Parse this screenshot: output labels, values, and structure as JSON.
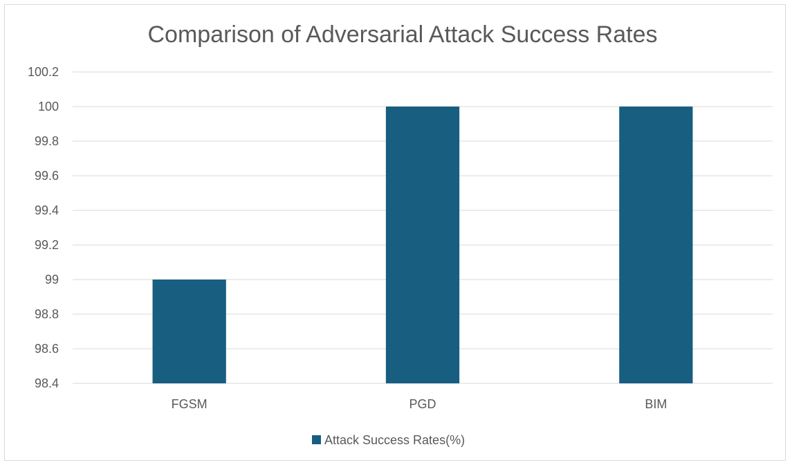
{
  "chart_data": {
    "type": "bar",
    "title": "Comparison of Adversarial Attack Success Rates",
    "xlabel": "",
    "ylabel": "",
    "categories": [
      "FGSM",
      "PGD",
      "BIM"
    ],
    "series": [
      {
        "name": "Attack Success Rates(%)",
        "values": [
          99,
          100,
          100
        ],
        "color": "#175e81"
      }
    ],
    "ylim": [
      98.4,
      100.2
    ],
    "yticks": [
      "98.4",
      "98.6",
      "98.8",
      "99",
      "99.2",
      "99.4",
      "99.6",
      "99.8",
      "100",
      "100.2"
    ],
    "grid": true,
    "legend_position": "bottom"
  }
}
